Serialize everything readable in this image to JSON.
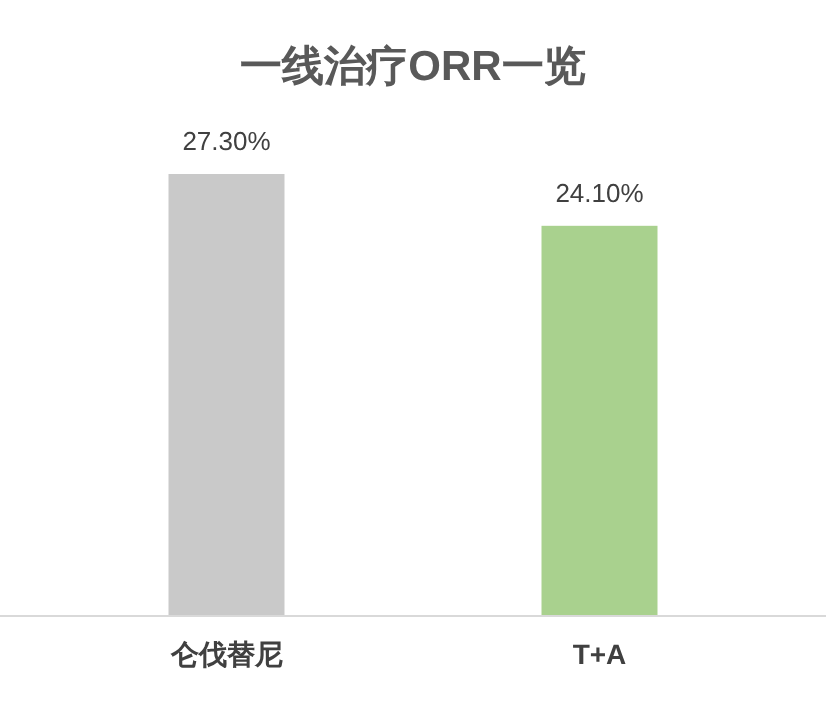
{
  "chart_data": {
    "type": "bar",
    "title": "一线治疗ORR一览",
    "categories": [
      "仑伐替尼",
      "T+A"
    ],
    "values": [
      27.3,
      24.1
    ],
    "colors": [
      "#c9c9c9",
      "#a9d18e"
    ],
    "value_labels": [
      "27.30%",
      "24.10%"
    ]
  }
}
